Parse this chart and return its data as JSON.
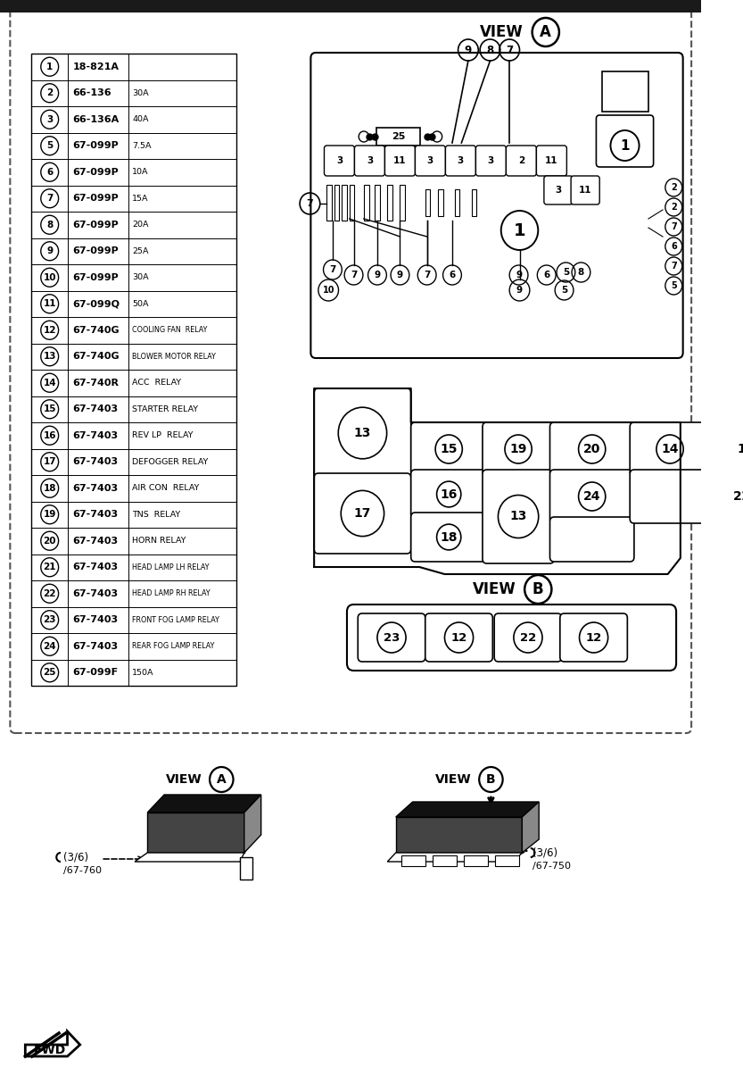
{
  "bg_color": "#ffffff",
  "table_rows": [
    [
      "1",
      "18-821A",
      ""
    ],
    [
      "2",
      "66-136",
      "30A"
    ],
    [
      "3",
      "66-136A",
      "40A"
    ],
    [
      "5",
      "67-099P",
      "7.5A"
    ],
    [
      "6",
      "67-099P",
      "10A"
    ],
    [
      "7",
      "67-099P",
      "15A"
    ],
    [
      "8",
      "67-099P",
      "20A"
    ],
    [
      "9",
      "67-099P",
      "25A"
    ],
    [
      "10",
      "67-099P",
      "30A"
    ],
    [
      "11",
      "67-099Q",
      "50A"
    ],
    [
      "12",
      "67-740G",
      "COOLING FAN  RELAY"
    ],
    [
      "13",
      "67-740G",
      "BLOWER MOTOR RELAY"
    ],
    [
      "14",
      "67-740R",
      "ACC  RELAY"
    ],
    [
      "15",
      "67-7403",
      "STARTER RELAY"
    ],
    [
      "16",
      "67-7403",
      "REV LP  RELAY"
    ],
    [
      "17",
      "67-7403",
      "DEFOGGER RELAY"
    ],
    [
      "18",
      "67-7403",
      "AIR CON  RELAY"
    ],
    [
      "19",
      "67-7403",
      "TNS  RELAY"
    ],
    [
      "20",
      "67-7403",
      "HORN RELAY"
    ],
    [
      "21",
      "67-7403",
      "HEAD LAMP LH RELAY"
    ],
    [
      "22",
      "67-7403",
      "HEAD LAMP RH RELAY"
    ],
    [
      "23",
      "67-7403",
      "FRONT FOG LAMP RELAY"
    ],
    [
      "24",
      "67-7403",
      "REAR FOG LAMP RELAY"
    ],
    [
      "25",
      "67-099F",
      "150A"
    ]
  ]
}
